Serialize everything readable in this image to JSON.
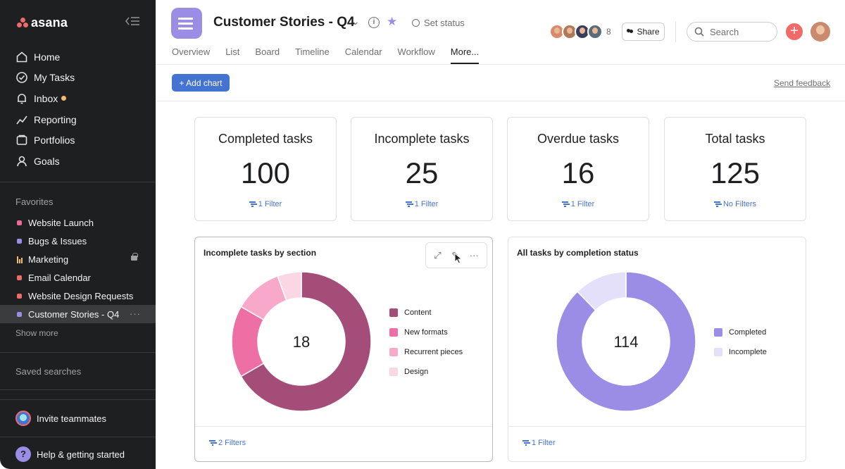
{
  "sidebar": {
    "logo": "asana",
    "nav": [
      {
        "label": "Home",
        "icon": "home-icon"
      },
      {
        "label": "My Tasks",
        "icon": "check-circle-icon"
      },
      {
        "label": "Inbox",
        "icon": "bell-icon",
        "badge_color": "#f1bd6c"
      },
      {
        "label": "Reporting",
        "icon": "chart-line-icon"
      },
      {
        "label": "Portfolios",
        "icon": "folder-icon"
      },
      {
        "label": "Goals",
        "icon": "person-icon"
      }
    ],
    "favorites_heading": "Favorites",
    "favorites": [
      {
        "label": "Website Launch",
        "color": "#f06a9e"
      },
      {
        "label": "Bugs & Issues",
        "color": "#9b8ce6"
      },
      {
        "label": "Marketing",
        "color": "#f1bd6c"
      },
      {
        "label": "Email Calendar",
        "color": "#f06a6a"
      },
      {
        "label": "Website Design Requests",
        "color": "#f06a6a"
      },
      {
        "label": "Customer Stories - Q4",
        "color": "#9b8ce6"
      }
    ],
    "show_more": "Show more",
    "saved_searches": "Saved searches",
    "invite": "Invite teammates",
    "help": "Help & getting started",
    "help_icon_glyph": "?"
  },
  "header": {
    "project_title": "Customer Stories - Q4",
    "info_glyph": "i",
    "set_status": "Set status",
    "tabs": [
      "Overview",
      "List",
      "Board",
      "Timeline",
      "Calendar",
      "Workflow",
      "More..."
    ],
    "member_count": "8",
    "share_label": "Share",
    "search_placeholder": "Search",
    "plus_glyph": "+"
  },
  "toolbar": {
    "add_chart": "+ Add chart",
    "send_feedback": "Send feedback"
  },
  "number_cards": [
    {
      "title": "Completed tasks",
      "value": "100",
      "filter": "1 Filter"
    },
    {
      "title": "Incomplete tasks",
      "value": "25",
      "filter": "1 Filter"
    },
    {
      "title": "Overdue tasks",
      "value": "16",
      "filter": "1 Filter"
    },
    {
      "title": "Total tasks",
      "value": "125",
      "filter": "No Filters"
    }
  ],
  "chart_data": [
    {
      "type": "pie",
      "title": "Incomplete tasks by section",
      "center_label": "18",
      "categories": [
        "Content",
        "New formats",
        "Recurrent pieces",
        "Design"
      ],
      "values": [
        12,
        3,
        2,
        1
      ],
      "colors": [
        "#a44d79",
        "#ee6fa4",
        "#f8a8cb",
        "#fbd7e6"
      ],
      "filter": "2 Filters"
    },
    {
      "type": "pie",
      "title": "All tasks by completion status",
      "center_label": "114",
      "categories": [
        "Completed",
        "Incomplete"
      ],
      "values": [
        100,
        14
      ],
      "colors": [
        "#9b8ce6",
        "#e4e0f9"
      ],
      "filter": "1 Filter"
    }
  ],
  "colors": {
    "accent_blue": "#4573d2",
    "sidebar_bg": "#1e1f21",
    "coral": "#f06a6a",
    "purple": "#9b8ce6"
  }
}
